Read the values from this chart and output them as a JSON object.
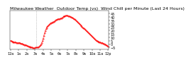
{
  "title": "Milwaukee Weather  Outdoor Temp (vs)  Wind Chill per Minute (Last 24 Hours)",
  "bg_color": "#ffffff",
  "line_color": "#ff0000",
  "vline_color": "#888888",
  "yticks": [
    -5,
    0,
    5,
    10,
    15,
    20,
    25,
    30,
    35,
    40,
    45
  ],
  "ylim": [
    -8,
    50
  ],
  "xlim": [
    -1,
    144
  ],
  "x_values": [
    0,
    1,
    2,
    3,
    4,
    5,
    6,
    7,
    8,
    9,
    10,
    11,
    12,
    13,
    14,
    15,
    16,
    17,
    18,
    19,
    20,
    21,
    22,
    23,
    24,
    25,
    26,
    27,
    28,
    29,
    30,
    31,
    32,
    33,
    34,
    35,
    36,
    37,
    38,
    39,
    40,
    41,
    42,
    43,
    44,
    45,
    46,
    47,
    48,
    49,
    50,
    51,
    52,
    53,
    54,
    55,
    56,
    57,
    58,
    59,
    60,
    61,
    62,
    63,
    64,
    65,
    66,
    67,
    68,
    69,
    70,
    71,
    72,
    73,
    74,
    75,
    76,
    77,
    78,
    79,
    80,
    81,
    82,
    83,
    84,
    85,
    86,
    87,
    88,
    89,
    90,
    91,
    92,
    93,
    94,
    95,
    96,
    97,
    98,
    99,
    100,
    101,
    102,
    103,
    104,
    105,
    106,
    107,
    108,
    109,
    110,
    111,
    112,
    113,
    114,
    115,
    116,
    117,
    118,
    119,
    120,
    121,
    122,
    123,
    124,
    125,
    126,
    127,
    128,
    129,
    130,
    131,
    132,
    133,
    134,
    135,
    136,
    137,
    138,
    139,
    140,
    141,
    142,
    143
  ],
  "y_values": [
    5,
    5,
    4,
    4,
    3,
    3,
    3,
    3,
    3,
    2,
    2,
    2,
    2,
    2,
    2,
    1,
    1,
    1,
    0,
    0,
    -1,
    -1,
    -1,
    -2,
    -3,
    -3,
    -4,
    -4,
    -4,
    -5,
    -5,
    -5,
    -5,
    -6,
    -6,
    -6,
    -6,
    -5,
    -5,
    -5,
    -5,
    -5,
    -4,
    -3,
    -2,
    0,
    2,
    5,
    8,
    12,
    16,
    19,
    22,
    24,
    26,
    27,
    28,
    29,
    30,
    31,
    31,
    32,
    32,
    33,
    33,
    34,
    35,
    36,
    36,
    37,
    37,
    37,
    37,
    38,
    38,
    38,
    39,
    40,
    41,
    41,
    41,
    42,
    42,
    42,
    42,
    41,
    41,
    41,
    40,
    40,
    39,
    39,
    38,
    37,
    37,
    36,
    35,
    34,
    33,
    32,
    31,
    30,
    29,
    28,
    27,
    26,
    25,
    24,
    23,
    22,
    21,
    20,
    19,
    18,
    17,
    16,
    15,
    14,
    13,
    12,
    11,
    10,
    9,
    8,
    7,
    6,
    5,
    5,
    4,
    4,
    3,
    3,
    3,
    2,
    2,
    2,
    1,
    1,
    0,
    0,
    -1,
    -2,
    -3,
    -4
  ],
  "xtick_positions": [
    0,
    12,
    24,
    36,
    48,
    60,
    72,
    84,
    96,
    108,
    120,
    132,
    143
  ],
  "xtick_labels": [
    "12a",
    "1a",
    "2a",
    "3a",
    "4a",
    "5a",
    "6a",
    "7a",
    "8a",
    "9a",
    "10a",
    "11a",
    "12p"
  ],
  "title_fontsize": 4.5,
  "tick_fontsize": 3.5,
  "linewidth": 0.7,
  "markersize": 0.8,
  "vline_xval": 38
}
